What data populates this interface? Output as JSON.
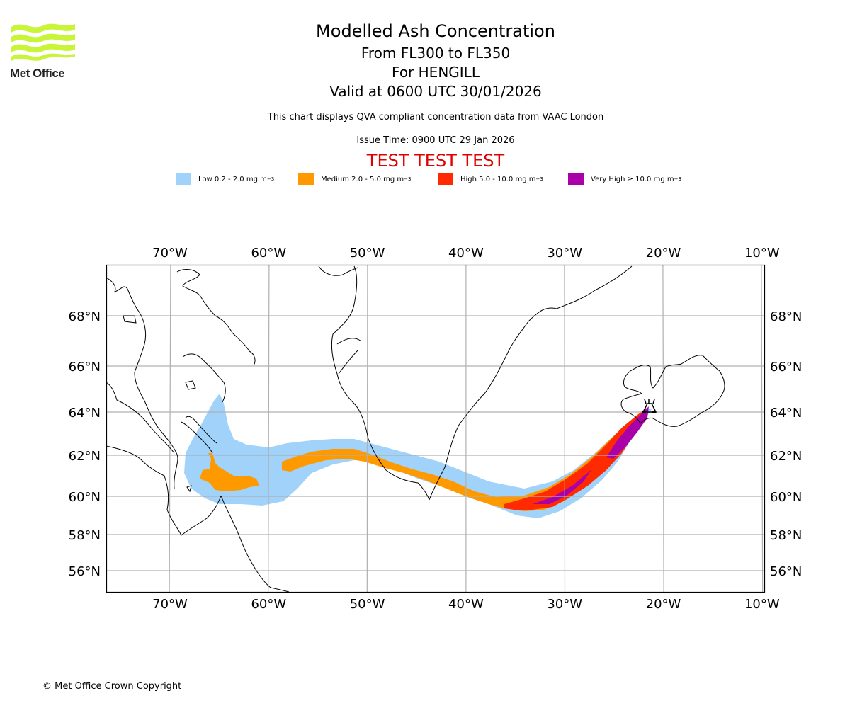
{
  "header": {
    "title": "Modelled Ash Concentration",
    "flight_levels": "From FL300 to FL350",
    "volcano": "For HENGILL",
    "valid_time": "Valid at 0600 UTC 30/01/2026",
    "note": "This chart displays QVA compliant concentration data from VAAC London",
    "issue_time": "Issue Time: 0900 UTC 29 Jan 2026",
    "test_banner": "TEST TEST TEST"
  },
  "logo": {
    "text": "Met Office",
    "icon": "met-office-wave-logo",
    "color": "#c8f53a"
  },
  "legend": [
    {
      "label": "Low 0.2 - 2.0 mg m",
      "exp": "−3",
      "color": "#a0d2fa",
      "name": "low"
    },
    {
      "label": "Medium 2.0 - 5.0 mg m",
      "exp": "−3",
      "color": "#ff9900",
      "name": "medium"
    },
    {
      "label": "High 5.0 - 10.0 mg m",
      "exp": "−3",
      "color": "#ff2a00",
      "name": "high"
    },
    {
      "label": "Very High ≥ 10.0 mg m",
      "exp": "−3",
      "color": "#aa00aa",
      "name": "very-high"
    }
  ],
  "footer": {
    "copyright": "© Met Office Crown Copyright"
  },
  "chart_data": {
    "type": "map",
    "title": "Modelled Ash Concentration",
    "volcano": {
      "name": "HENGILL",
      "lon": -21.3,
      "lat": 64.1,
      "icon": "volcano-icon"
    },
    "extent": {
      "lon": [
        -76.5,
        -9.5
      ],
      "lat": [
        55,
        70
      ]
    },
    "grid": true,
    "lon_ticks": [
      -70,
      -60,
      -50,
      -40,
      -30,
      -20,
      -10
    ],
    "lon_tick_labels": [
      "70°W",
      "60°W",
      "50°W",
      "40°W",
      "30°W",
      "20°W",
      "10°W"
    ],
    "lat_ticks": [
      56,
      58,
      60,
      62,
      64,
      66,
      68
    ],
    "lat_tick_labels": [
      "56°N",
      "58°N",
      "60°N",
      "62°N",
      "64°N",
      "66°N",
      "68°N"
    ],
    "ash_levels": [
      "low",
      "medium",
      "high",
      "very-high"
    ],
    "ash_plume_summary": "Plume from Hengill extends SW to ~35°W at ~59.5°N then W along ~61–62°N to ~68°W over Labrador Sea/Baffin region"
  }
}
